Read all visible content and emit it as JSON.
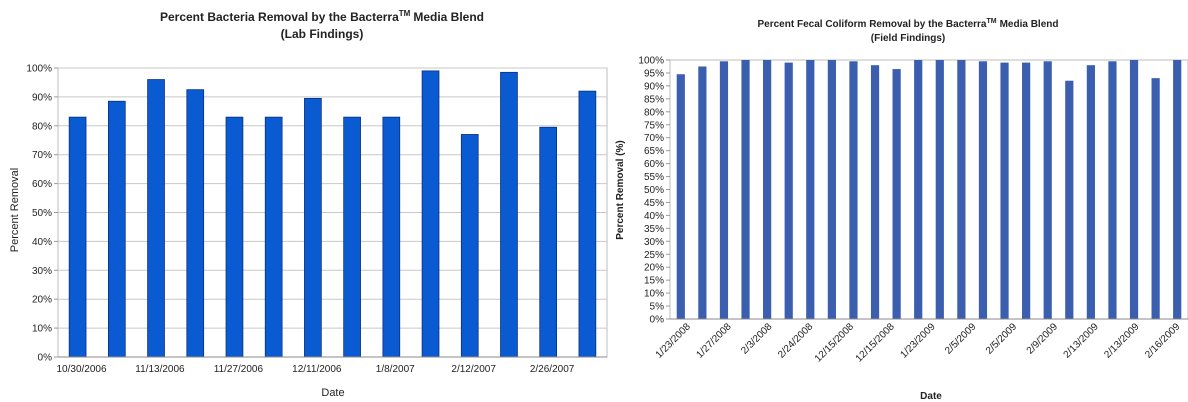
{
  "chart_data": [
    {
      "type": "bar",
      "title": "Percent Bacteria Removal by the Bacterra",
      "title_superscript": "TM",
      "title_suffix": "Media Blend",
      "subtitle": "(Lab Findings)",
      "xlabel": "Date",
      "ylabel": "Percent Removal",
      "ylim": [
        0,
        100
      ],
      "yticks": [
        "0%",
        "10%",
        "20%",
        "30%",
        "40%",
        "50%",
        "60%",
        "70%",
        "80%",
        "90%",
        "100%"
      ],
      "grid": true,
      "legend": "none",
      "color": "#0a5bd1",
      "values": [
        83,
        88.5,
        96,
        92.5,
        83,
        83,
        89.5,
        83,
        83,
        99,
        77,
        98.5,
        79.5,
        92
      ],
      "x_tick_labels": [
        "10/30/2006",
        "11/13/2006",
        "11/27/2006",
        "12/11/2006",
        "1/8/2007",
        "2/12/2007",
        "2/26/2007"
      ]
    },
    {
      "type": "bar",
      "title": "Percent Fecal Coliform Removal by the Bacterra",
      "title_superscript": "TM",
      "title_suffix": "Media Blend",
      "subtitle": "(Field Findings)",
      "xlabel": "Date",
      "ylabel": "Percent Removal (%)",
      "ylim": [
        0,
        100
      ],
      "yticks": [
        "0%",
        "5%",
        "10%",
        "15%",
        "20%",
        "25%",
        "30%",
        "35%",
        "40%",
        "45%",
        "50%",
        "55%",
        "60%",
        "65%",
        "70%",
        "75%",
        "80%",
        "85%",
        "90%",
        "95%",
        "100%"
      ],
      "grid": false,
      "legend": "none",
      "color": "#3b5fae",
      "values": [
        94.5,
        97.5,
        99.5,
        100,
        100,
        99,
        100,
        100,
        99.5,
        98,
        96.5,
        100,
        100,
        100,
        99.5,
        99,
        99,
        99.5,
        92,
        98,
        99.5,
        100,
        93,
        100
      ],
      "x_tick_labels": [
        "1/23/2008",
        "1/27/2008",
        "2/3/2008",
        "2/24/2008",
        "12/15/2008",
        "12/15/2008",
        "1/23/2009",
        "2/5/2009",
        "2/5/2009",
        "2/9/2009",
        "2/13/2009",
        "2/13/2009",
        "2/16/2009"
      ]
    }
  ]
}
